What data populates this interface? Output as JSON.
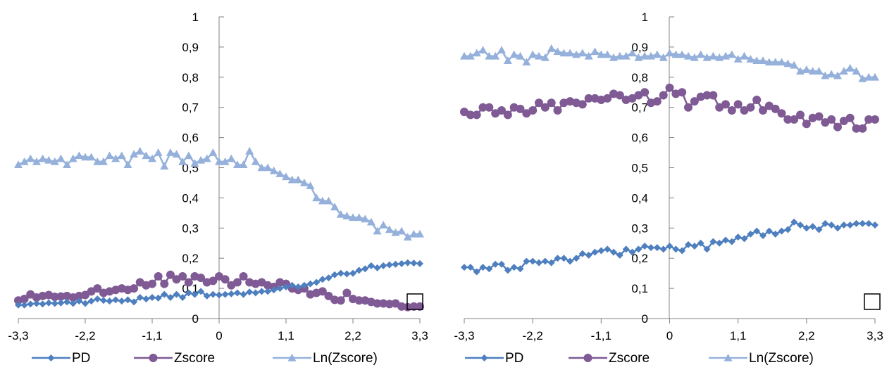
{
  "chart_data": [
    {
      "type": "line",
      "title": "",
      "xlabel": "",
      "ylabel": "",
      "xlim": [
        -3.3,
        3.3
      ],
      "ylim": [
        0,
        1
      ],
      "x_tick_labels": [
        "-3,3",
        "-2,2",
        "-1,1",
        "0",
        "1,1",
        "2,2",
        "3,3"
      ],
      "y_tick_labels": [
        "0",
        "0,1",
        "0,2",
        "0,3",
        "0,4",
        "0,5",
        "0,6",
        "0,7",
        "0,8",
        "0,9",
        "1"
      ],
      "grid": false,
      "legend": "bottom",
      "x": [
        -3.3,
        -3.2,
        -3.1,
        -3.0,
        -2.9,
        -2.8,
        -2.7,
        -2.6,
        -2.5,
        -2.4,
        -2.3,
        -2.2,
        -2.1,
        -2.0,
        -1.9,
        -1.8,
        -1.7,
        -1.6,
        -1.5,
        -1.4,
        -1.3,
        -1.2,
        -1.1,
        -1.0,
        -0.9,
        -0.8,
        -0.7,
        -0.6,
        -0.5,
        -0.4,
        -0.3,
        -0.2,
        -0.1,
        0.0,
        0.1,
        0.2,
        0.3,
        0.4,
        0.5,
        0.6,
        0.7,
        0.8,
        0.9,
        1.0,
        1.1,
        1.2,
        1.3,
        1.4,
        1.5,
        1.6,
        1.7,
        1.8,
        1.9,
        2.0,
        2.1,
        2.2,
        2.3,
        2.4,
        2.5,
        2.6,
        2.7,
        2.8,
        2.9,
        3.0,
        3.1,
        3.2,
        3.3
      ],
      "series": [
        {
          "name": "PD",
          "values": [
            0.045,
            0.045,
            0.048,
            0.05,
            0.048,
            0.052,
            0.05,
            0.052,
            0.055,
            0.05,
            0.058,
            0.05,
            0.058,
            0.065,
            0.06,
            0.058,
            0.062,
            0.058,
            0.062,
            0.055,
            0.07,
            0.065,
            0.07,
            0.068,
            0.08,
            0.07,
            0.08,
            0.07,
            0.085,
            0.08,
            0.09,
            0.075,
            0.08,
            0.078,
            0.08,
            0.082,
            0.085,
            0.08,
            0.088,
            0.085,
            0.09,
            0.09,
            0.095,
            0.1,
            0.105,
            0.11,
            0.105,
            0.11,
            0.115,
            0.12,
            0.13,
            0.135,
            0.145,
            0.15,
            0.148,
            0.15,
            0.16,
            0.165,
            0.175,
            0.168,
            0.175,
            0.178,
            0.18,
            0.182,
            0.185,
            0.184,
            0.182
          ]
        },
        {
          "name": "Zscore",
          "values": [
            0.06,
            0.065,
            0.08,
            0.07,
            0.075,
            0.078,
            0.072,
            0.073,
            0.075,
            0.07,
            0.075,
            0.078,
            0.09,
            0.1,
            0.085,
            0.09,
            0.095,
            0.1,
            0.095,
            0.1,
            0.12,
            0.11,
            0.115,
            0.14,
            0.115,
            0.145,
            0.13,
            0.14,
            0.12,
            0.14,
            0.135,
            0.12,
            0.125,
            0.14,
            0.13,
            0.11,
            0.12,
            0.14,
            0.12,
            0.115,
            0.12,
            0.11,
            0.105,
            0.12,
            0.115,
            0.1,
            0.095,
            0.1,
            0.08,
            0.085,
            0.09,
            0.075,
            0.062,
            0.06,
            0.085,
            0.065,
            0.06,
            0.06,
            0.055,
            0.05,
            0.05,
            0.048,
            0.05,
            0.04,
            0.038,
            0.04,
            0.04
          ]
        },
        {
          "name": "Ln(Zscore)",
          "values": [
            0.51,
            0.52,
            0.53,
            0.52,
            0.53,
            0.525,
            0.52,
            0.53,
            0.51,
            0.53,
            0.54,
            0.535,
            0.535,
            0.52,
            0.52,
            0.54,
            0.53,
            0.54,
            0.51,
            0.545,
            0.555,
            0.54,
            0.53,
            0.55,
            0.505,
            0.55,
            0.545,
            0.52,
            0.54,
            0.515,
            0.525,
            0.53,
            0.55,
            0.52,
            0.52,
            0.53,
            0.51,
            0.51,
            0.555,
            0.52,
            0.5,
            0.5,
            0.49,
            0.48,
            0.47,
            0.46,
            0.46,
            0.45,
            0.44,
            0.4,
            0.39,
            0.39,
            0.37,
            0.345,
            0.34,
            0.335,
            0.335,
            0.33,
            0.32,
            0.29,
            0.31,
            0.295,
            0.285,
            0.29,
            0.27,
            0.28,
            0.28
          ]
        }
      ]
    },
    {
      "type": "line",
      "title": "",
      "xlabel": "",
      "ylabel": "",
      "xlim": [
        -3.3,
        3.3
      ],
      "ylim": [
        0,
        1
      ],
      "x_tick_labels": [
        "-3,3",
        "-2,2",
        "-1,1",
        "0",
        "1,1",
        "2,2",
        "3,3"
      ],
      "y_tick_labels": [
        "0",
        "0,1",
        "0,2",
        "0,3",
        "0,4",
        "0,5",
        "0,6",
        "0,7",
        "0,8",
        "0,9",
        "1"
      ],
      "grid": false,
      "legend": "bottom",
      "x": [
        -3.3,
        -3.2,
        -3.1,
        -3.0,
        -2.9,
        -2.8,
        -2.7,
        -2.6,
        -2.5,
        -2.4,
        -2.3,
        -2.2,
        -2.1,
        -2.0,
        -1.9,
        -1.8,
        -1.7,
        -1.6,
        -1.5,
        -1.4,
        -1.3,
        -1.2,
        -1.1,
        -1.0,
        -0.9,
        -0.8,
        -0.7,
        -0.6,
        -0.5,
        -0.4,
        -0.3,
        -0.2,
        -0.1,
        0.0,
        0.1,
        0.2,
        0.3,
        0.4,
        0.5,
        0.6,
        0.7,
        0.8,
        0.9,
        1.0,
        1.1,
        1.2,
        1.3,
        1.4,
        1.5,
        1.6,
        1.7,
        1.8,
        1.9,
        2.0,
        2.1,
        2.2,
        2.3,
        2.4,
        2.5,
        2.6,
        2.7,
        2.8,
        2.9,
        3.0,
        3.1,
        3.2,
        3.3
      ],
      "series": [
        {
          "name": "PD",
          "values": [
            0.17,
            0.17,
            0.155,
            0.17,
            0.165,
            0.18,
            0.18,
            0.16,
            0.17,
            0.165,
            0.19,
            0.19,
            0.185,
            0.19,
            0.185,
            0.2,
            0.2,
            0.19,
            0.2,
            0.215,
            0.21,
            0.22,
            0.225,
            0.23,
            0.22,
            0.21,
            0.23,
            0.22,
            0.23,
            0.24,
            0.235,
            0.235,
            0.23,
            0.24,
            0.23,
            0.225,
            0.245,
            0.24,
            0.25,
            0.23,
            0.255,
            0.25,
            0.26,
            0.255,
            0.27,
            0.265,
            0.28,
            0.29,
            0.275,
            0.29,
            0.28,
            0.29,
            0.295,
            0.32,
            0.31,
            0.3,
            0.305,
            0.295,
            0.315,
            0.31,
            0.3,
            0.31,
            0.31,
            0.315,
            0.315,
            0.315,
            0.31
          ]
        },
        {
          "name": "Zscore",
          "values": [
            0.685,
            0.675,
            0.675,
            0.7,
            0.7,
            0.68,
            0.69,
            0.675,
            0.7,
            0.695,
            0.68,
            0.69,
            0.715,
            0.7,
            0.715,
            0.69,
            0.715,
            0.72,
            0.715,
            0.71,
            0.73,
            0.73,
            0.725,
            0.73,
            0.745,
            0.74,
            0.725,
            0.73,
            0.74,
            0.75,
            0.715,
            0.72,
            0.74,
            0.765,
            0.745,
            0.75,
            0.7,
            0.72,
            0.735,
            0.74,
            0.74,
            0.7,
            0.71,
            0.69,
            0.71,
            0.69,
            0.7,
            0.725,
            0.69,
            0.705,
            0.695,
            0.68,
            0.66,
            0.66,
            0.675,
            0.645,
            0.665,
            0.67,
            0.65,
            0.66,
            0.635,
            0.655,
            0.665,
            0.63,
            0.63,
            0.66,
            0.66
          ]
        },
        {
          "name": "Ln(Zscore)",
          "values": [
            0.87,
            0.87,
            0.88,
            0.89,
            0.87,
            0.87,
            0.89,
            0.855,
            0.875,
            0.87,
            0.85,
            0.875,
            0.87,
            0.865,
            0.895,
            0.885,
            0.88,
            0.88,
            0.875,
            0.88,
            0.87,
            0.885,
            0.875,
            0.875,
            0.865,
            0.87,
            0.87,
            0.88,
            0.865,
            0.87,
            0.87,
            0.875,
            0.865,
            0.88,
            0.875,
            0.875,
            0.87,
            0.865,
            0.875,
            0.865,
            0.87,
            0.865,
            0.87,
            0.875,
            0.86,
            0.87,
            0.86,
            0.855,
            0.855,
            0.85,
            0.85,
            0.85,
            0.845,
            0.84,
            0.82,
            0.825,
            0.82,
            0.82,
            0.805,
            0.81,
            0.805,
            0.82,
            0.83,
            0.82,
            0.795,
            0.8,
            0.8
          ]
        }
      ]
    }
  ],
  "colors": {
    "PD": "#4E7FBF",
    "Zscore": "#7F5A94",
    "Ln(Zscore)": "#95B1DB",
    "axis": "#808080"
  }
}
